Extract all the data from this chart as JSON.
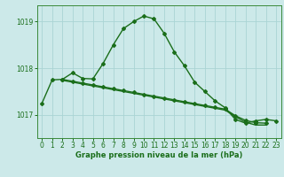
{
  "xlabel": "Graphe pression niveau de la mer (hPa)",
  "bg_color": "#cce9e9",
  "grid_color": "#aad4d4",
  "line_color": "#1a6e1a",
  "marker": "D",
  "markersize": 2,
  "linewidth": 1.0,
  "ylim": [
    1016.5,
    1019.35
  ],
  "yticks": [
    1017,
    1018,
    1019
  ],
  "xlim": [
    -0.5,
    23.5
  ],
  "xticks": [
    0,
    1,
    2,
    3,
    4,
    5,
    6,
    7,
    8,
    9,
    10,
    11,
    12,
    13,
    14,
    15,
    16,
    17,
    18,
    19,
    20,
    21,
    22,
    23
  ],
  "series1_x": [
    0,
    1,
    2,
    3,
    4,
    5,
    6,
    7,
    8,
    9,
    10,
    11,
    12,
    13,
    14,
    15,
    16,
    17,
    18,
    19,
    20,
    21,
    22,
    23
  ],
  "series1_y": [
    1017.25,
    1017.75,
    1017.76,
    1017.9,
    1017.78,
    1017.77,
    1018.1,
    1018.5,
    1018.85,
    1019.0,
    1019.12,
    1019.06,
    1018.75,
    1018.35,
    1018.05,
    1017.7,
    1017.5,
    1017.3,
    1017.15,
    1016.9,
    1016.82,
    1016.87,
    1016.9,
    1016.87
  ],
  "series2_x": [
    2,
    3,
    4,
    5,
    6,
    7,
    8,
    9,
    10,
    11,
    12,
    13,
    14,
    15,
    16,
    17,
    18,
    19,
    20,
    21,
    22
  ],
  "series2_y": [
    1017.76,
    1017.72,
    1017.68,
    1017.64,
    1017.6,
    1017.56,
    1017.52,
    1017.48,
    1017.44,
    1017.4,
    1017.36,
    1017.32,
    1017.28,
    1017.24,
    1017.2,
    1017.16,
    1017.12,
    1016.98,
    1016.88,
    1016.83,
    1016.82
  ],
  "series3_x": [
    2,
    3,
    4,
    5,
    6,
    7,
    8,
    9,
    10,
    11,
    12,
    13,
    14,
    15,
    16,
    17,
    18,
    19,
    20,
    21,
    22
  ],
  "series3_y": [
    1017.74,
    1017.7,
    1017.66,
    1017.62,
    1017.58,
    1017.54,
    1017.5,
    1017.46,
    1017.42,
    1017.38,
    1017.34,
    1017.3,
    1017.26,
    1017.22,
    1017.18,
    1017.14,
    1017.1,
    1016.96,
    1016.84,
    1016.78,
    1016.78
  ]
}
